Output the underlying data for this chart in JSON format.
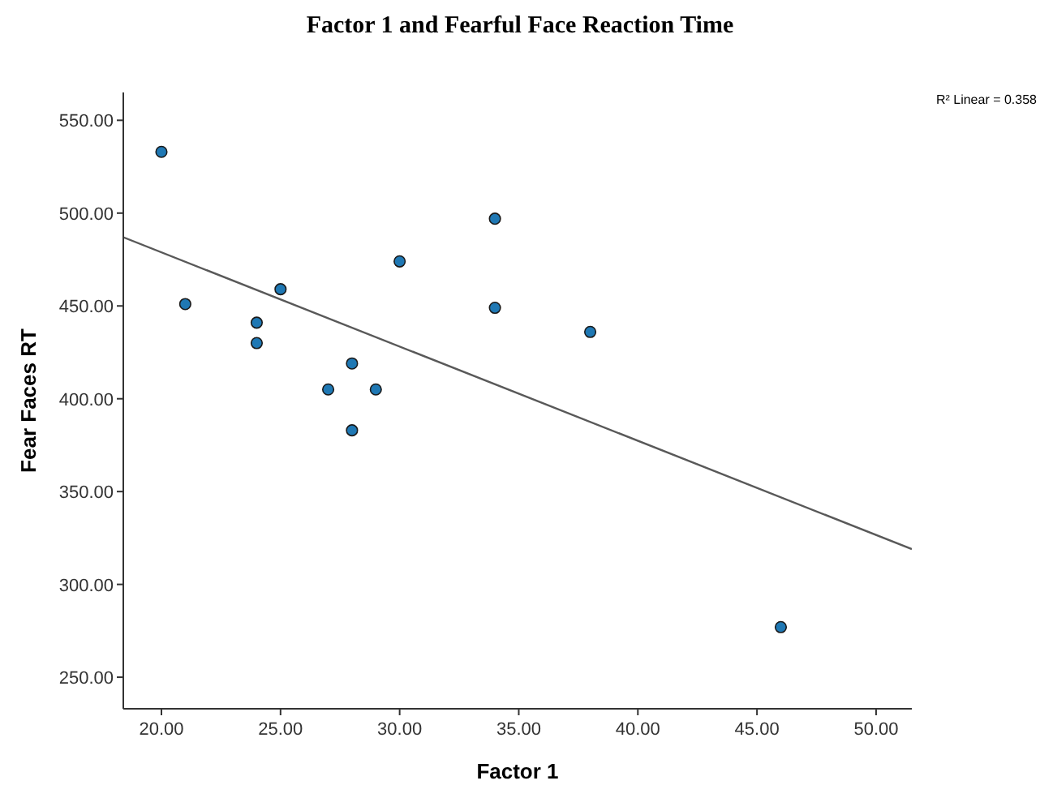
{
  "chart_data": {
    "type": "scatter",
    "title": "Factor 1 and Fearful Face Reaction Time",
    "xlabel": "Factor  1",
    "ylabel": "Fear Faces RT",
    "xlim": [
      18.4,
      51.5
    ],
    "ylim": [
      233,
      565
    ],
    "xticks": [
      {
        "value": 20,
        "label": "20.00"
      },
      {
        "value": 25,
        "label": "25.00"
      },
      {
        "value": 30,
        "label": "30.00"
      },
      {
        "value": 35,
        "label": "35.00"
      },
      {
        "value": 40,
        "label": "40.00"
      },
      {
        "value": 45,
        "label": "45.00"
      },
      {
        "value": 50,
        "label": "50.00"
      }
    ],
    "yticks": [
      {
        "value": 250,
        "label": "250.00"
      },
      {
        "value": 300,
        "label": "300.00"
      },
      {
        "value": 350,
        "label": "350.00"
      },
      {
        "value": 400,
        "label": "400.00"
      },
      {
        "value": 450,
        "label": "450.00"
      },
      {
        "value": 500,
        "label": "500.00"
      },
      {
        "value": 550,
        "label": "550.00"
      }
    ],
    "grid": false,
    "annotations": [
      "R² Linear = 0.358"
    ],
    "series": [
      {
        "marker": "circle",
        "color": "#1f78b4",
        "x": [
          20,
          21,
          24,
          24,
          25,
          27,
          28,
          28,
          29,
          30,
          34,
          34,
          38,
          46
        ],
        "values": [
          533,
          451,
          441,
          430,
          459,
          405,
          419,
          383,
          405,
          474,
          497,
          449,
          436,
          277
        ]
      },
      {
        "type": "line",
        "color": "#595959",
        "x": [
          18.4,
          51.5
        ],
        "values": [
          487,
          319
        ]
      }
    ]
  }
}
